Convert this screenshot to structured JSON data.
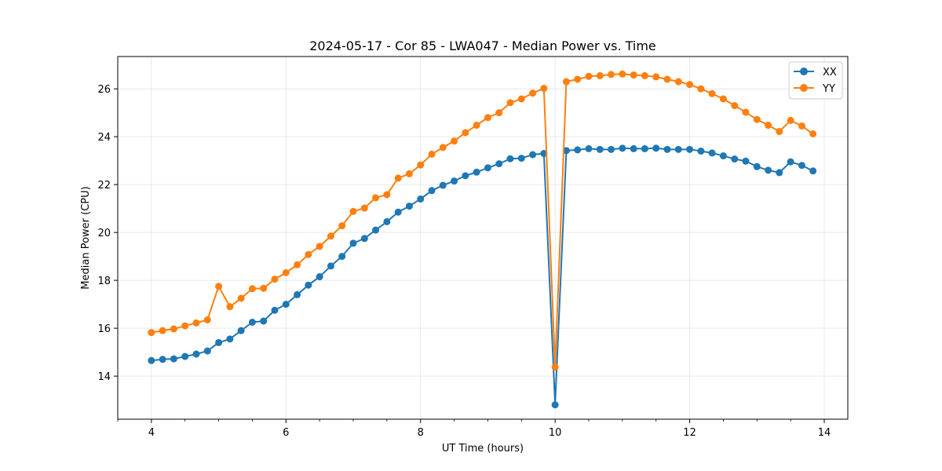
{
  "chart_data": {
    "type": "line",
    "title": "2024-05-17 - Cor 85 - LWA047 - Median Power vs. Time",
    "xlabel": "UT Time (hours)",
    "ylabel": "Median Power (CPU)",
    "xlim": [
      3.5,
      14.35
    ],
    "ylim": [
      12.2,
      27.35
    ],
    "xticks": [
      4,
      6,
      8,
      10,
      12,
      14
    ],
    "yticks": [
      14,
      16,
      18,
      20,
      22,
      24,
      26
    ],
    "grid": true,
    "legend_position": "top-right",
    "x": [
      4.0,
      4.167,
      4.333,
      4.5,
      4.667,
      4.833,
      5.0,
      5.167,
      5.333,
      5.5,
      5.667,
      5.833,
      6.0,
      6.167,
      6.333,
      6.5,
      6.667,
      6.833,
      7.0,
      7.167,
      7.333,
      7.5,
      7.667,
      7.833,
      8.0,
      8.167,
      8.333,
      8.5,
      8.667,
      8.833,
      9.0,
      9.167,
      9.333,
      9.5,
      9.667,
      9.833,
      10.0,
      10.167,
      10.333,
      10.5,
      10.667,
      10.833,
      11.0,
      11.167,
      11.333,
      11.5,
      11.667,
      11.833,
      12.0,
      12.167,
      12.333,
      12.5,
      12.667,
      12.833,
      13.0,
      13.167,
      13.333,
      13.5,
      13.667,
      13.833
    ],
    "series": [
      {
        "name": "XX",
        "color": "#1f77b4",
        "values": [
          14.65,
          14.7,
          14.72,
          14.82,
          14.92,
          15.05,
          15.4,
          15.55,
          15.9,
          16.25,
          16.3,
          16.75,
          17.0,
          17.4,
          17.8,
          18.15,
          18.6,
          19.0,
          19.55,
          19.75,
          20.1,
          20.45,
          20.85,
          21.1,
          21.4,
          21.75,
          21.97,
          22.15,
          22.37,
          22.52,
          22.7,
          22.87,
          23.08,
          23.1,
          23.25,
          23.3,
          12.8,
          23.42,
          23.45,
          23.5,
          23.47,
          23.47,
          23.52,
          23.5,
          23.5,
          23.52,
          23.47,
          23.47,
          23.47,
          23.4,
          23.32,
          23.2,
          23.07,
          22.98,
          22.75,
          22.6,
          22.5,
          22.95,
          22.8,
          22.57
        ]
      },
      {
        "name": "YY",
        "color": "#ff7f0e",
        "values": [
          15.82,
          15.9,
          15.97,
          16.1,
          16.22,
          16.35,
          17.75,
          16.9,
          17.25,
          17.65,
          17.67,
          18.05,
          18.32,
          18.65,
          19.08,
          19.42,
          19.85,
          20.28,
          20.88,
          21.02,
          21.45,
          21.58,
          22.27,
          22.45,
          22.82,
          23.27,
          23.55,
          23.82,
          24.17,
          24.48,
          24.8,
          25.0,
          25.42,
          25.58,
          25.82,
          26.02,
          14.38,
          26.3,
          26.4,
          26.52,
          26.55,
          26.6,
          26.62,
          26.58,
          26.55,
          26.5,
          26.4,
          26.3,
          26.18,
          26.0,
          25.8,
          25.58,
          25.3,
          25.02,
          24.72,
          24.48,
          24.22,
          24.68,
          24.45,
          24.12
        ]
      }
    ]
  }
}
